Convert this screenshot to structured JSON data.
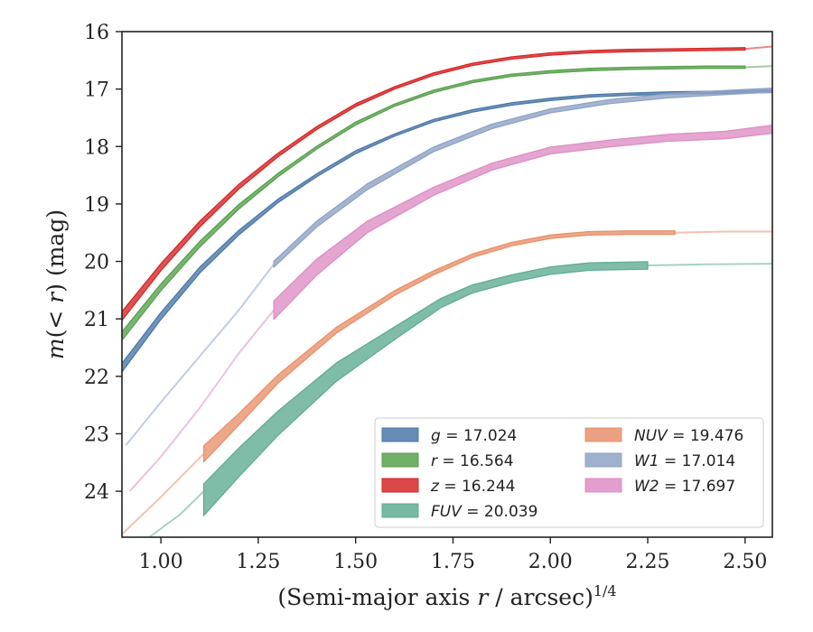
{
  "chart_data": {
    "type": "line",
    "xlabel_main": "(Semi-major axis ",
    "xlabel_var": "r",
    "xlabel_rest": " / arcsec)",
    "xlabel_exp": "1/4",
    "ylabel_m": "m",
    "ylabel_open": "(",
    "ylabel_inner": "< r",
    "ylabel_close": ") (mag)",
    "xlim": [
      0.9,
      2.57
    ],
    "ylim": [
      16.0,
      24.8
    ],
    "y_inverted": true,
    "xticks": [
      1.0,
      1.25,
      1.5,
      1.75,
      2.0,
      2.25,
      2.5
    ],
    "xtick_labels": [
      "1.00",
      "1.25",
      "1.50",
      "1.75",
      "2.00",
      "2.25",
      "2.50"
    ],
    "yticks": [
      16,
      17,
      18,
      19,
      20,
      21,
      22,
      23,
      24
    ],
    "ytick_labels": [
      "16",
      "17",
      "18",
      "19",
      "20",
      "21",
      "22",
      "23",
      "24"
    ],
    "legend_position": "lower-right",
    "series": [
      {
        "key": "g",
        "legend_label": "g",
        "total_mag": "17.024",
        "color": "#4c78a8",
        "faint": [],
        "bold": [
          [
            0.9,
            21.85
          ],
          [
            1.0,
            20.95
          ],
          [
            1.1,
            20.15
          ],
          [
            1.2,
            19.5
          ],
          [
            1.3,
            18.95
          ],
          [
            1.4,
            18.5
          ],
          [
            1.5,
            18.1
          ],
          [
            1.6,
            17.8
          ],
          [
            1.7,
            17.55
          ],
          [
            1.8,
            17.38
          ],
          [
            1.9,
            17.26
          ],
          [
            2.0,
            17.18
          ],
          [
            2.1,
            17.12
          ],
          [
            2.2,
            17.09
          ],
          [
            2.3,
            17.07
          ],
          [
            2.4,
            17.06
          ],
          [
            2.5,
            17.05
          ],
          [
            2.57,
            17.04
          ]
        ],
        "width": [
          0.15,
          0.12,
          0.1,
          0.08,
          0.06,
          0.05,
          0.05,
          0.04,
          0.04,
          0.04,
          0.04,
          0.04,
          0.04,
          0.04,
          0.04,
          0.04,
          0.04,
          0.04
        ]
      },
      {
        "key": "r",
        "legend_label": "r",
        "total_mag": "16.564",
        "color": "#59a14f",
        "faint": [
          [
            2.5,
            16.62
          ],
          [
            2.57,
            16.6
          ]
        ],
        "bold": [
          [
            0.9,
            21.3
          ],
          [
            1.0,
            20.45
          ],
          [
            1.1,
            19.7
          ],
          [
            1.2,
            19.05
          ],
          [
            1.3,
            18.5
          ],
          [
            1.4,
            18.02
          ],
          [
            1.5,
            17.6
          ],
          [
            1.6,
            17.28
          ],
          [
            1.7,
            17.04
          ],
          [
            1.8,
            16.87
          ],
          [
            1.9,
            16.76
          ],
          [
            2.0,
            16.7
          ],
          [
            2.1,
            16.66
          ],
          [
            2.2,
            16.64
          ],
          [
            2.3,
            16.63
          ],
          [
            2.4,
            16.62
          ],
          [
            2.5,
            16.62
          ]
        ],
        "width": [
          0.15,
          0.12,
          0.1,
          0.08,
          0.06,
          0.05,
          0.05,
          0.04,
          0.04,
          0.04,
          0.04,
          0.04,
          0.04,
          0.04,
          0.04,
          0.04,
          0.04
        ]
      },
      {
        "key": "z",
        "legend_label": "z",
        "total_mag": "16.244",
        "color": "#d62728",
        "faint": [
          [
            2.5,
            16.3
          ],
          [
            2.57,
            16.26
          ]
        ],
        "bold": [
          [
            0.9,
            20.95
          ],
          [
            1.0,
            20.1
          ],
          [
            1.1,
            19.35
          ],
          [
            1.2,
            18.7
          ],
          [
            1.3,
            18.15
          ],
          [
            1.4,
            17.68
          ],
          [
            1.5,
            17.28
          ],
          [
            1.6,
            16.98
          ],
          [
            1.7,
            16.74
          ],
          [
            1.8,
            16.57
          ],
          [
            1.9,
            16.46
          ],
          [
            2.0,
            16.39
          ],
          [
            2.1,
            16.35
          ],
          [
            2.2,
            16.33
          ],
          [
            2.3,
            16.32
          ],
          [
            2.4,
            16.31
          ],
          [
            2.5,
            16.3
          ]
        ],
        "width": [
          0.15,
          0.12,
          0.1,
          0.08,
          0.06,
          0.05,
          0.05,
          0.04,
          0.04,
          0.04,
          0.04,
          0.04,
          0.04,
          0.04,
          0.04,
          0.04,
          0.04
        ]
      },
      {
        "key": "FUV",
        "legend_label": "FUV",
        "total_mag": "20.039",
        "color": "#5fad92",
        "faint": [
          [
            0.97,
            24.8
          ],
          [
            1.05,
            24.4
          ],
          [
            1.11,
            24.0
          ],
          [
            2.25,
            20.07
          ],
          [
            2.4,
            20.05
          ],
          [
            2.57,
            20.04
          ]
        ],
        "faint_split": 3,
        "bold": [
          [
            1.11,
            24.15
          ],
          [
            1.2,
            23.5
          ],
          [
            1.3,
            22.82
          ],
          [
            1.45,
            21.93
          ],
          [
            1.6,
            21.25
          ],
          [
            1.72,
            20.72
          ],
          [
            1.8,
            20.48
          ],
          [
            1.9,
            20.3
          ],
          [
            2.0,
            20.16
          ],
          [
            2.1,
            20.09
          ],
          [
            2.25,
            20.07
          ]
        ],
        "width": [
          0.55,
          0.5,
          0.42,
          0.32,
          0.22,
          0.16,
          0.14,
          0.13,
          0.13,
          0.13,
          0.13
        ]
      },
      {
        "key": "NUV",
        "legend_label": "NUV",
        "total_mag": "19.476",
        "color": "#e8916b",
        "faint": [
          [
            0.9,
            24.75
          ],
          [
            1.0,
            24.1
          ],
          [
            1.11,
            23.35
          ],
          [
            2.32,
            19.5
          ],
          [
            2.45,
            19.48
          ],
          [
            2.57,
            19.48
          ]
        ],
        "faint_split": 3,
        "bold": [
          [
            1.11,
            23.35
          ],
          [
            1.2,
            22.75
          ],
          [
            1.3,
            22.05
          ],
          [
            1.45,
            21.2
          ],
          [
            1.6,
            20.55
          ],
          [
            1.7,
            20.2
          ],
          [
            1.8,
            19.9
          ],
          [
            1.9,
            19.7
          ],
          [
            2.0,
            19.57
          ],
          [
            2.1,
            19.51
          ],
          [
            2.2,
            19.5
          ],
          [
            2.32,
            19.5
          ]
        ],
        "width": [
          0.28,
          0.2,
          0.14,
          0.1,
          0.08,
          0.07,
          0.06,
          0.06,
          0.06,
          0.06,
          0.06,
          0.06
        ]
      },
      {
        "key": "W1",
        "legend_label": "W1",
        "total_mag": "17.014",
        "color": "#8fa3c4",
        "faint": [
          [
            0.91,
            23.2
          ],
          [
            1.0,
            22.45
          ],
          [
            1.1,
            21.65
          ],
          [
            1.2,
            20.85
          ],
          [
            1.29,
            20.05
          ]
        ],
        "bold": [
          [
            1.29,
            20.05
          ],
          [
            1.4,
            19.35
          ],
          [
            1.53,
            18.7
          ],
          [
            1.7,
            18.05
          ],
          [
            1.85,
            17.65
          ],
          [
            2.0,
            17.38
          ],
          [
            2.15,
            17.22
          ],
          [
            2.3,
            17.12
          ],
          [
            2.45,
            17.06
          ],
          [
            2.57,
            17.02
          ]
        ],
        "width": [
          0.1,
          0.1,
          0.1,
          0.08,
          0.08,
          0.07,
          0.07,
          0.07,
          0.07,
          0.07
        ]
      },
      {
        "key": "W2",
        "legend_label": "W2",
        "total_mag": "17.697",
        "color": "#dd8ec4",
        "faint": [
          [
            0.92,
            24.0
          ],
          [
            1.0,
            23.4
          ],
          [
            1.1,
            22.55
          ],
          [
            1.2,
            21.6
          ],
          [
            1.29,
            20.85
          ]
        ],
        "bold": [
          [
            1.29,
            20.85
          ],
          [
            1.4,
            20.1
          ],
          [
            1.53,
            19.4
          ],
          [
            1.7,
            18.78
          ],
          [
            1.85,
            18.35
          ],
          [
            2.0,
            18.07
          ],
          [
            2.15,
            17.95
          ],
          [
            2.3,
            17.85
          ],
          [
            2.45,
            17.8
          ],
          [
            2.57,
            17.7
          ]
        ],
        "width": [
          0.32,
          0.28,
          0.2,
          0.14,
          0.12,
          0.12,
          0.12,
          0.12,
          0.13,
          0.14
        ]
      }
    ],
    "legend_columns": [
      [
        "g",
        "r",
        "z",
        "FUV"
      ],
      [
        "NUV",
        "W1",
        "W2"
      ]
    ]
  }
}
